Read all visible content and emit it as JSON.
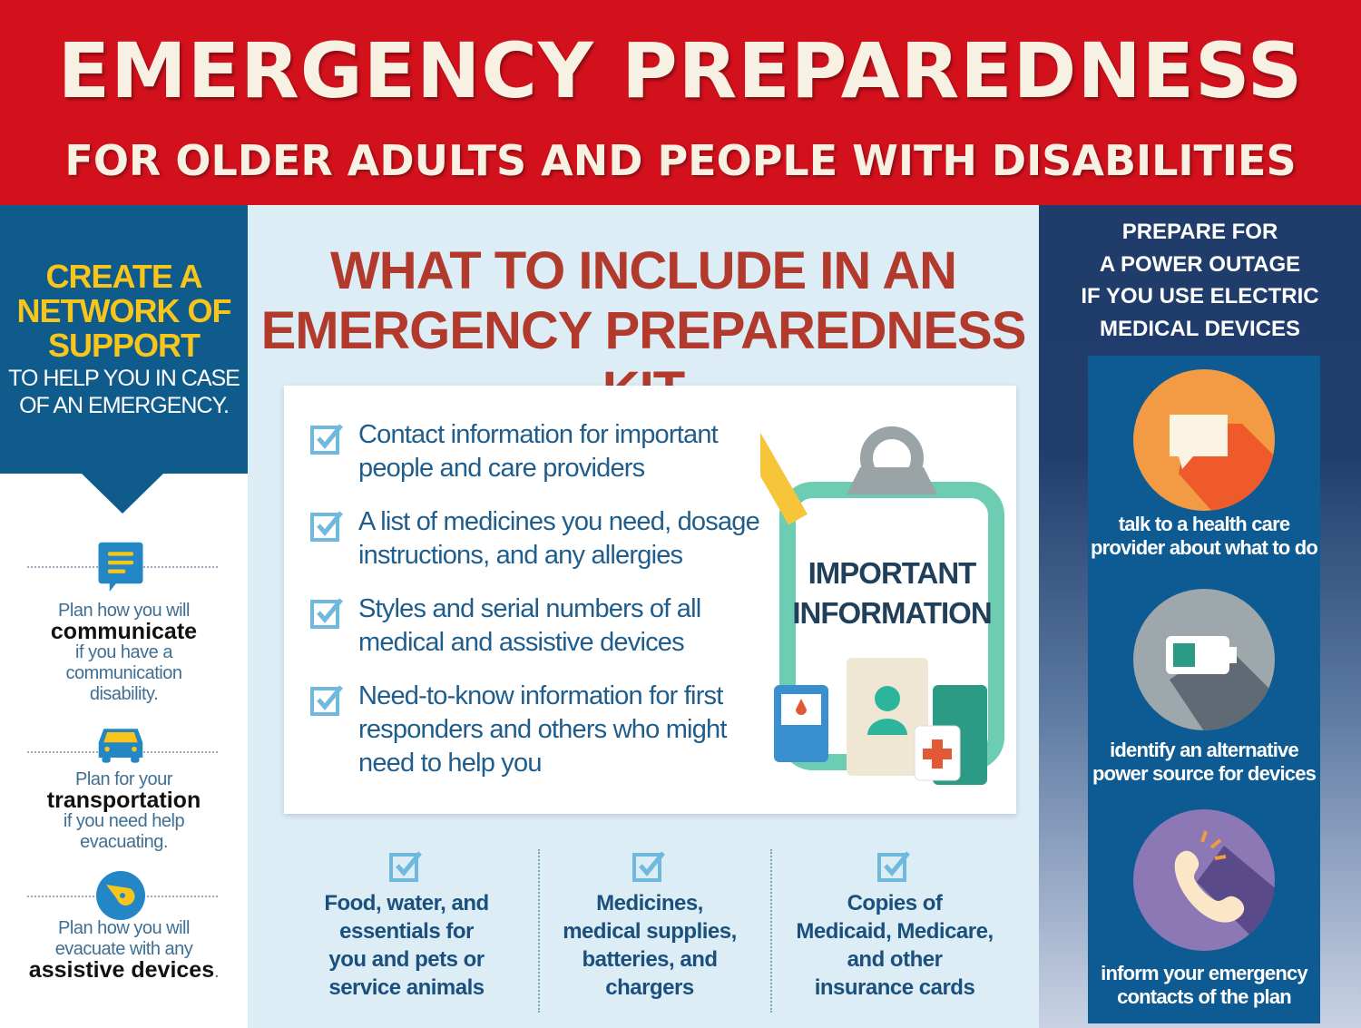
{
  "header": {
    "title": "EMERGENCY PREPAREDNESS",
    "subtitle": "FOR OLDER ADULTS AND PEOPLE WITH DISABILITIES"
  },
  "left": {
    "heading_lines": [
      "CREATE A",
      "NETWORK OF",
      "SUPPORT"
    ],
    "subheading_lines": [
      "TO HELP YOU IN CASE",
      "OF AN EMERGENCY."
    ],
    "items": [
      {
        "icon": "speech-bubble-icon",
        "pre": "Plan how you will",
        "bold": "communicate",
        "post": [
          "if you have a",
          "communication",
          "disability."
        ]
      },
      {
        "icon": "car-icon",
        "pre": "Plan for your",
        "bold": "transportation",
        "post": [
          "if you need help",
          "evacuating."
        ]
      },
      {
        "icon": "wheelchair-compass-icon",
        "pre_lines": [
          "Plan how you will",
          "evacuate with any"
        ],
        "bold": "assistive devices",
        "post_tail": "."
      }
    ]
  },
  "middle": {
    "title_lines": [
      "WHAT TO INCLUDE IN AN",
      "EMERGENCY PREPAREDNESS KIT"
    ],
    "checklist": [
      [
        "Contact information for important",
        "people and care providers"
      ],
      [
        "A list of medicines you need, dosage",
        "instructions, and any allergies"
      ],
      [
        "Styles and serial numbers of all",
        "medical and assistive devices"
      ],
      [
        "Need-to-know information for first",
        "responders and others who might",
        "need to help you"
      ]
    ],
    "clipboard_lines": [
      "IMPORTANT",
      "INFORMATION"
    ],
    "bottom_items": [
      [
        "Food, water, and",
        "essentials for",
        "you and pets or",
        "service animals"
      ],
      [
        "Medicines,",
        "medical supplies,",
        "batteries, and",
        "chargers"
      ],
      [
        "Copies of",
        "Medicaid, Medicare,",
        "and other",
        "insurance cards"
      ]
    ]
  },
  "right": {
    "title_lines": [
      "PREPARE FOR",
      "A POWER OUTAGE",
      "IF YOU USE ELECTRIC",
      "MEDICAL DEVICES"
    ],
    "items": [
      {
        "icon": "chat-bubble-icon",
        "color": "#f39a44",
        "lines": [
          "talk to a health care",
          "provider about what to do"
        ]
      },
      {
        "icon": "battery-icon",
        "color": "#9ea7ab",
        "lines": [
          "identify an alternative",
          "power source for devices"
        ]
      },
      {
        "icon": "phone-icon",
        "color": "#8b78b4",
        "lines": [
          "inform your emergency",
          "contacts of the plan"
        ]
      }
    ]
  },
  "colors": {
    "header_red": "#d3111c",
    "left_blue": "#0f5b8c",
    "accent_yellow": "#f7c51c",
    "title_red": "#b23a2c",
    "panel_blue": "#0d5b92"
  }
}
